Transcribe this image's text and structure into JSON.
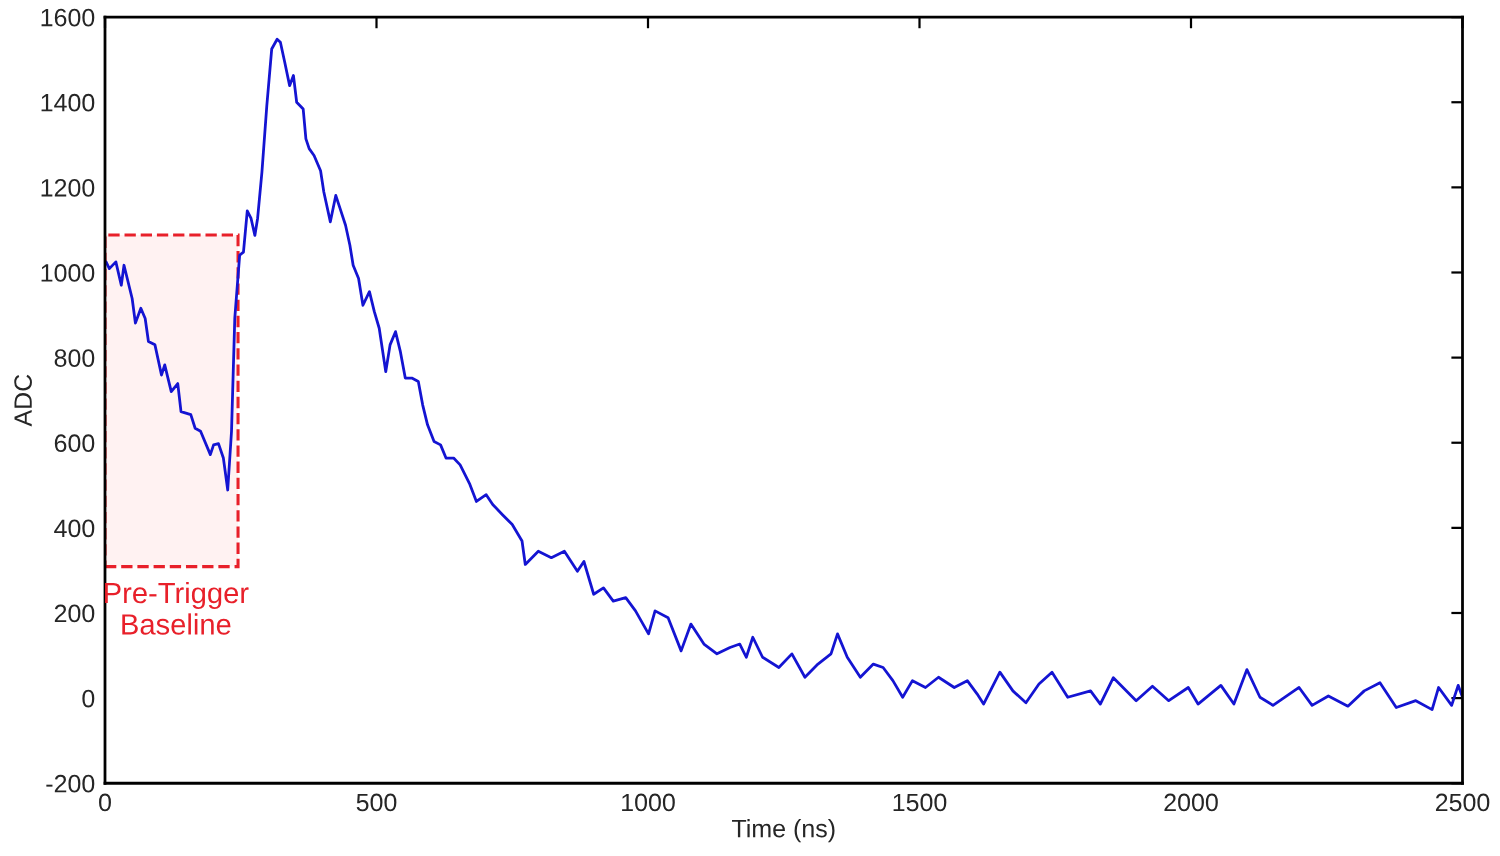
{
  "chart_data": {
    "type": "line",
    "xlabel": "Time (ns)",
    "ylabel": "ADC",
    "xlim": [
      0,
      2500
    ],
    "ylim": [
      -200,
      1600
    ],
    "xticks": [
      0,
      500,
      1000,
      1500,
      2000,
      2500
    ],
    "yticks": [
      -200,
      0,
      200,
      400,
      600,
      800,
      1000,
      1200,
      1400,
      1600
    ],
    "grid": false,
    "legend": false,
    "marker": "none",
    "line_style": "solid",
    "bands": [
      {
        "axis": "x",
        "from": 0,
        "to": 245,
        "label": "Pre-Trigger\nBaseline",
        "color": "#e8202a"
      }
    ],
    "series": [
      {
        "color": "#1414d2",
        "x": [
          2,
          8,
          20,
          30,
          35,
          50,
          56,
          66,
          74,
          80,
          92,
          104,
          110,
          122,
          134,
          140,
          158,
          166,
          176,
          194,
          200,
          209,
          218,
          226,
          233,
          239,
          248,
          255,
          262,
          269,
          276,
          281,
          289,
          298,
          307,
          317,
          323,
          331,
          340,
          347,
          353,
          365,
          370,
          376,
          385,
          397,
          403,
          415,
          425,
          433,
          443,
          451,
          457,
          467,
          475,
          487,
          496,
          505,
          517,
          525,
          535,
          544,
          553,
          565,
          577,
          585,
          594,
          606,
          618,
          628,
          642,
          654,
          672,
          684,
          702,
          714,
          732,
          750,
          768,
          774,
          798,
          822,
          846,
          870,
          882,
          900,
          918,
          936,
          959,
          977,
          1001,
          1013,
          1037,
          1061,
          1079,
          1103,
          1127,
          1151,
          1169,
          1181,
          1193,
          1211,
          1241,
          1265,
          1289,
          1313,
          1337,
          1349,
          1367,
          1391,
          1415,
          1433,
          1451,
          1469,
          1487,
          1511,
          1535,
          1564,
          1588,
          1606,
          1618,
          1648,
          1672,
          1696,
          1720,
          1744,
          1773,
          1815,
          1833,
          1857,
          1899,
          1929,
          1959,
          1995,
          2013,
          2055,
          2079,
          2103,
          2127,
          2151,
          2199,
          2223,
          2253,
          2289,
          2319,
          2348,
          2378,
          2414,
          2444,
          2456,
          2480,
          2492,
          2500
        ],
        "values": [
          1025,
          1009,
          1025,
          970,
          1017,
          939,
          881,
          916,
          892,
          838,
          830,
          759,
          783,
          720,
          739,
          673,
          666,
          634,
          627,
          572,
          595,
          598,
          564,
          489,
          627,
          892,
          1041,
          1048,
          1145,
          1127,
          1087,
          1127,
          1236,
          1392,
          1525,
          1548,
          1541,
          1494,
          1439,
          1463,
          1400,
          1384,
          1314,
          1291,
          1275,
          1239,
          1189,
          1119,
          1181,
          1150,
          1111,
          1064,
          1017,
          986,
          923,
          955,
          908,
          869,
          767,
          830,
          861,
          814,
          752,
          752,
          744,
          689,
          642,
          603,
          595,
          564,
          564,
          548,
          502,
          462,
          478,
          455,
          431,
          408,
          369,
          314,
          345,
          330,
          345,
          298,
          321,
          244,
          259,
          228,
          236,
          205,
          151,
          205,
          189,
          111,
          174,
          127,
          104,
          119,
          127,
          96,
          143,
          96,
          72,
          104,
          49,
          80,
          104,
          151,
          96,
          49,
          80,
          72,
          41,
          2,
          41,
          25,
          49,
          25,
          41,
          10,
          -14,
          61,
          17,
          -11,
          33,
          61,
          2,
          17,
          -14,
          48,
          -6,
          28,
          -6,
          25,
          -14,
          30,
          -14,
          67,
          2,
          -17,
          25,
          -17,
          5,
          -19,
          17,
          36,
          -22,
          -6,
          -27,
          25,
          -17,
          30,
          2
        ]
      }
    ]
  }
}
